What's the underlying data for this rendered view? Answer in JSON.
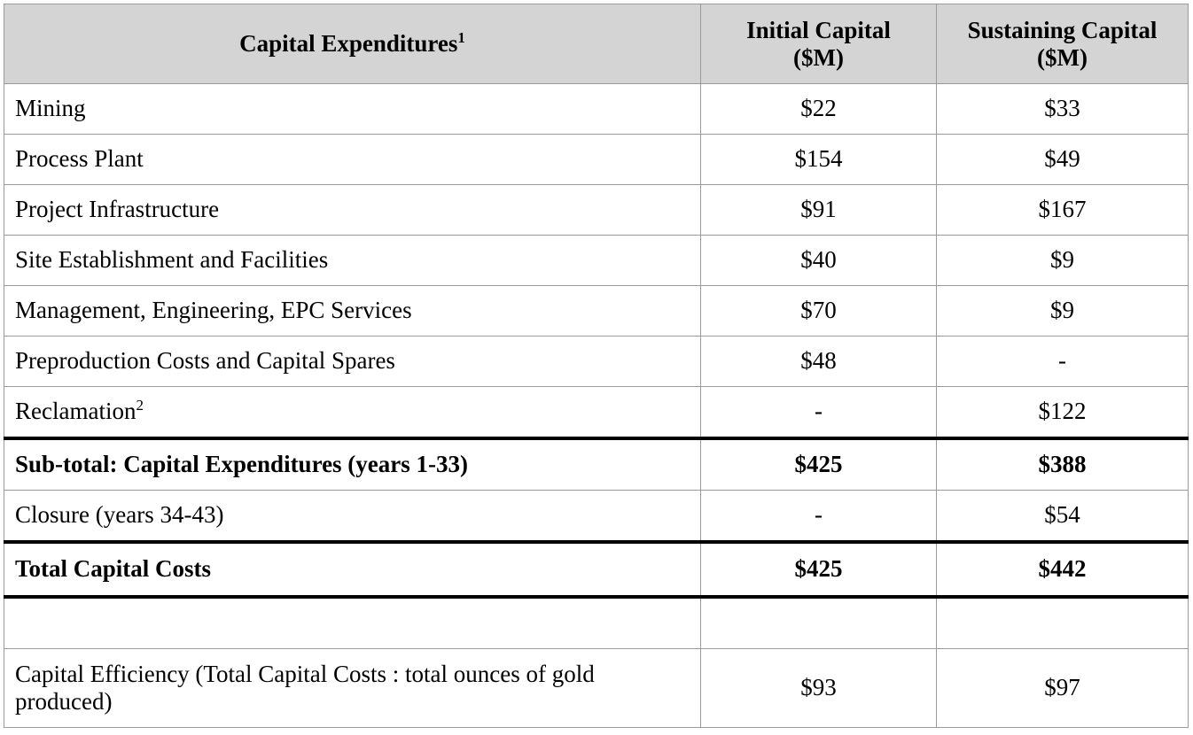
{
  "header": {
    "col1": "Capital Expenditures",
    "col1_sup": "1",
    "col2_line1": "Initial Capital",
    "col2_line2": "($M)",
    "col3_line1": "Sustaining Capital",
    "col3_line2": "($M)"
  },
  "rows": [
    {
      "label": "Mining",
      "sup": "",
      "initial": "$22",
      "sustaining": "$33"
    },
    {
      "label": "Process Plant",
      "sup": "",
      "initial": "$154",
      "sustaining": "$49"
    },
    {
      "label": "Project Infrastructure",
      "sup": "",
      "initial": "$91",
      "sustaining": "$167"
    },
    {
      "label": "Site Establishment and Facilities",
      "sup": "",
      "initial": "$40",
      "sustaining": "$9"
    },
    {
      "label": "Management, Engineering, EPC Services",
      "sup": "",
      "initial": "$70",
      "sustaining": "$9"
    },
    {
      "label": "Preproduction Costs and Capital Spares",
      "sup": "",
      "initial": "$48",
      "sustaining": "-"
    },
    {
      "label": "Reclamation",
      "sup": "2",
      "initial": "-",
      "sustaining": "$122"
    },
    {
      "label": "Sub-total: Capital Expenditures (years 1-33)",
      "sup": "",
      "initial": "$425",
      "sustaining": "$388"
    },
    {
      "label": "Closure (years 34-43)",
      "sup": "",
      "initial": "-",
      "sustaining": "$54"
    },
    {
      "label": "Total Capital Costs",
      "sup": "",
      "initial": "$425",
      "sustaining": "$442"
    },
    {
      "label": "",
      "sup": "",
      "initial": "",
      "sustaining": ""
    },
    {
      "label": "Capital Efficiency (Total Capital Costs : total ounces of gold produced)",
      "sup": "",
      "initial": "$93",
      "sustaining": "$97"
    }
  ]
}
